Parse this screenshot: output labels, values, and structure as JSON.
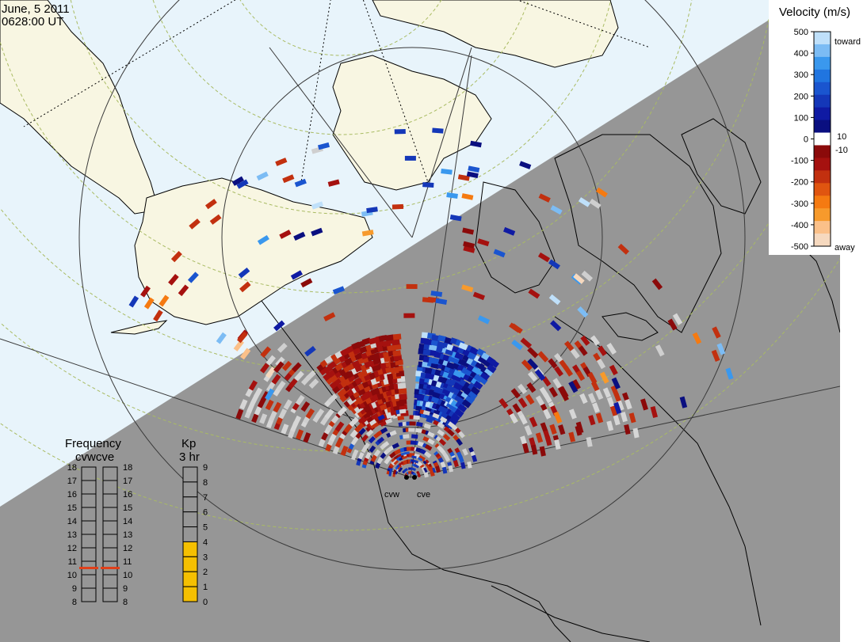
{
  "header": {
    "date": "June, 5 2011",
    "time": "0628:00 UT"
  },
  "radars": {
    "west_label": "cvw",
    "east_label": "cve"
  },
  "velocity_legend": {
    "title": "Velocity (m/s)",
    "ticks": [
      "500",
      "400",
      "300",
      "200",
      "100",
      "0",
      "-100",
      "-200",
      "-300",
      "-400",
      "-500"
    ],
    "toward_label": "toward",
    "away_label": "away",
    "pos_threshold": "10",
    "neg_threshold": "-10",
    "scale_colors": [
      "#f6d9bf",
      "#fbc089",
      "#f79a2c",
      "#f57a11",
      "#e05510",
      "#c2300f",
      "#a5110f",
      "#8b0a0a",
      "#ffffff",
      "#0a0f80",
      "#0f1aa3",
      "#1437b8",
      "#1a55cf",
      "#2075e0",
      "#3a98ee",
      "#7cbcf4",
      "#bfe0fa"
    ]
  },
  "frequency_legend": {
    "title": "Frequency",
    "subtitle": "cvwcve",
    "ticks": [
      "18",
      "17",
      "16",
      "15",
      "14",
      "13",
      "12",
      "11",
      "10",
      "9",
      "8"
    ],
    "cvw_mhz": 10.5,
    "cve_mhz": 10.5,
    "marker_color": "#e0401a"
  },
  "kp_legend": {
    "title": "Kp",
    "subtitle": "3 hr",
    "ticks": [
      "9",
      "8",
      "7",
      "6",
      "5",
      "4",
      "3",
      "2",
      "1",
      "0"
    ],
    "value": 4,
    "fill_color": "#f5c000"
  },
  "colors": {
    "day_side": "#e8f4fb",
    "night_side": "#969696",
    "land_day": "#f8f6e2",
    "grid_line": "#3a3a3a",
    "latitude_circle": "#a9bb63",
    "coast": "#000000"
  }
}
